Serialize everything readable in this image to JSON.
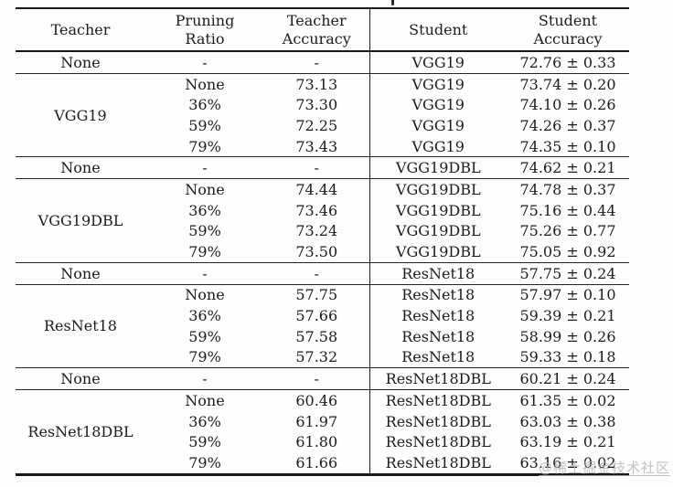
{
  "table": {
    "header": {
      "teacher": "Teacher",
      "pruning_line1": "Pruning",
      "pruning_line2": "Ratio",
      "teacher_acc_line1": "Teacher",
      "teacher_acc_line2": "Accuracy",
      "student": "Student",
      "student_acc_line1": "Student",
      "student_acc_line2": "Accuracy"
    },
    "sections": [
      {
        "baseline": {
          "teacher": "None",
          "pruning": "-",
          "teacher_acc": "-",
          "student": "VGG19",
          "student_acc": "72.76 ± 0.33"
        },
        "group_teacher": "VGG19",
        "rows": [
          {
            "pruning": "None",
            "teacher_acc": "73.13",
            "student": "VGG19",
            "student_acc": "73.74 ± 0.20"
          },
          {
            "pruning": "36%",
            "teacher_acc": "73.30",
            "student": "VGG19",
            "student_acc": "74.10 ± 0.26"
          },
          {
            "pruning": "59%",
            "teacher_acc": "72.25",
            "student": "VGG19",
            "student_acc": "74.26 ± 0.37"
          },
          {
            "pruning": "79%",
            "teacher_acc": "73.43",
            "student": "VGG19",
            "student_acc": "74.35 ± 0.10"
          }
        ]
      },
      {
        "baseline": {
          "teacher": "None",
          "pruning": "-",
          "teacher_acc": "-",
          "student": "VGG19DBL",
          "student_acc": "74.62 ± 0.21"
        },
        "group_teacher": "VGG19DBL",
        "rows": [
          {
            "pruning": "None",
            "teacher_acc": "74.44",
            "student": "VGG19DBL",
            "student_acc": "74.78 ± 0.37"
          },
          {
            "pruning": "36%",
            "teacher_acc": "73.46",
            "student": "VGG19DBL",
            "student_acc": "75.16 ± 0.44"
          },
          {
            "pruning": "59%",
            "teacher_acc": "73.24",
            "student": "VGG19DBL",
            "student_acc": "75.26 ± 0.77"
          },
          {
            "pruning": "79%",
            "teacher_acc": "73.50",
            "student": "VGG19DBL",
            "student_acc": "75.05 ± 0.92"
          }
        ]
      },
      {
        "baseline": {
          "teacher": "None",
          "pruning": "-",
          "teacher_acc": "-",
          "student": "ResNet18",
          "student_acc": "57.75 ± 0.24"
        },
        "group_teacher": "ResNet18",
        "rows": [
          {
            "pruning": "None",
            "teacher_acc": "57.75",
            "student": "ResNet18",
            "student_acc": "57.97 ± 0.10"
          },
          {
            "pruning": "36%",
            "teacher_acc": "57.66",
            "student": "ResNet18",
            "student_acc": "59.39 ± 0.21"
          },
          {
            "pruning": "59%",
            "teacher_acc": "57.58",
            "student": "ResNet18",
            "student_acc": "58.99 ± 0.26"
          },
          {
            "pruning": "79%",
            "teacher_acc": "57.32",
            "student": "ResNet18",
            "student_acc": "59.33 ± 0.18"
          }
        ]
      },
      {
        "baseline": {
          "teacher": "None",
          "pruning": "-",
          "teacher_acc": "-",
          "student": "ResNet18DBL",
          "student_acc": "60.21 ± 0.24"
        },
        "group_teacher": "ResNet18DBL",
        "rows": [
          {
            "pruning": "None",
            "teacher_acc": "60.46",
            "student": "ResNet18DBL",
            "student_acc": "61.35 ± 0.02"
          },
          {
            "pruning": "36%",
            "teacher_acc": "61.97",
            "student": "ResNet18DBL",
            "student_acc": "63.03 ± 0.38"
          },
          {
            "pruning": "59%",
            "teacher_acc": "61.80",
            "student": "ResNet18DBL",
            "student_acc": "63.19 ± 0.21"
          },
          {
            "pruning": "79%",
            "teacher_acc": "61.66",
            "student": "ResNet18DBL",
            "student_acc": "63.16 ± 0.02"
          }
        ]
      }
    ]
  },
  "watermark": {
    "text": "@稀土掘金技术社区"
  }
}
